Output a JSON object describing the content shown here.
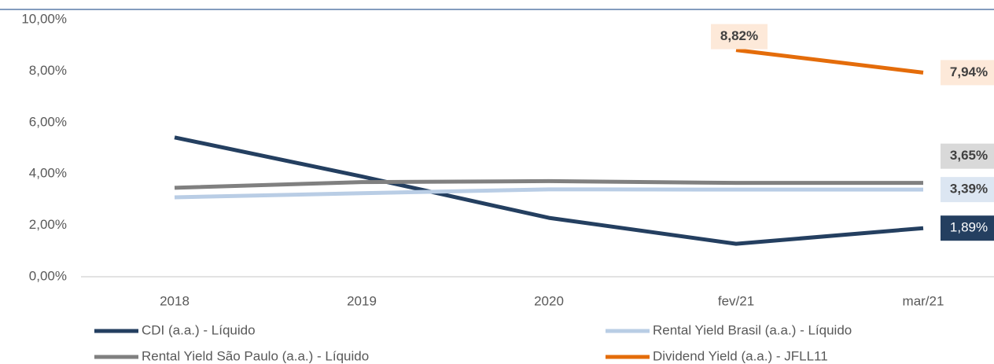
{
  "chart_data": {
    "type": "line",
    "categories": [
      "2018",
      "2019",
      "2020",
      "fev/21",
      "mar/21"
    ],
    "series": [
      {
        "name": "CDI (a.a.) - Líquido",
        "color": "#243f60",
        "values": [
          5.42,
          3.9,
          2.29,
          1.28,
          1.89
        ],
        "value_labels": [
          null,
          null,
          null,
          null,
          "1,89%"
        ]
      },
      {
        "name": "Rental Yield Brasil (a.a.) - Líquido",
        "color": "#b9cde5",
        "values": [
          3.09,
          3.25,
          3.4,
          3.39,
          3.39
        ],
        "value_labels": [
          null,
          null,
          null,
          null,
          "3,39%"
        ]
      },
      {
        "name": "Rental Yield São Paulo (a.a.) - Líquido",
        "color": "#808080",
        "values": [
          3.46,
          3.68,
          3.72,
          3.65,
          3.65
        ],
        "value_labels": [
          null,
          null,
          null,
          null,
          "3,65%"
        ]
      },
      {
        "name": "Dividend Yield (a.a.) - JFLL11",
        "color": "#e46c0a",
        "values": [
          null,
          null,
          null,
          8.82,
          7.94
        ],
        "value_labels": [
          null,
          null,
          null,
          "8,82%",
          "7,94%"
        ]
      }
    ],
    "ylim": [
      0,
      10
    ],
    "yticks": [
      {
        "value": 0,
        "label": "0,00%"
      },
      {
        "value": 2,
        "label": "2,00%"
      },
      {
        "value": 4,
        "label": "4,00%"
      },
      {
        "value": 6,
        "label": "6,00%"
      },
      {
        "value": 8,
        "label": "8,00%"
      },
      {
        "value": 10,
        "label": "10,00%"
      }
    ]
  }
}
